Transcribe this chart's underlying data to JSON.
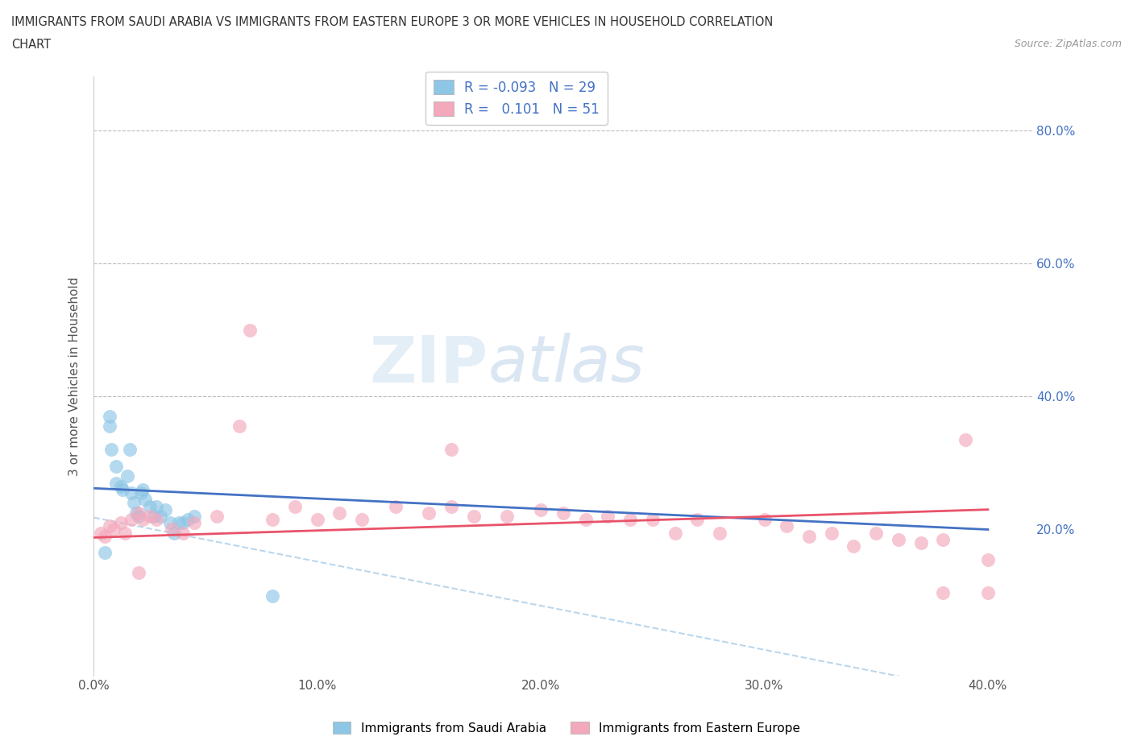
{
  "title_line1": "IMMIGRANTS FROM SAUDI ARABIA VS IMMIGRANTS FROM EASTERN EUROPE 3 OR MORE VEHICLES IN HOUSEHOLD CORRELATION",
  "title_line2": "CHART",
  "source": "Source: ZipAtlas.com",
  "ylabel": "3 or more Vehicles in Household",
  "xlim": [
    0.0,
    0.42
  ],
  "ylim": [
    -0.02,
    0.88
  ],
  "xticks": [
    0.0,
    0.1,
    0.2,
    0.3,
    0.4
  ],
  "yticks": [
    0.0,
    0.2,
    0.4,
    0.6,
    0.8
  ],
  "xtick_labels": [
    "0.0%",
    "10.0%",
    "20.0%",
    "30.0%",
    "40.0%"
  ],
  "ytick_labels_right": [
    "",
    "20.0%",
    "40.0%",
    "60.0%",
    "80.0%"
  ],
  "legend_label1": "Immigrants from Saudi Arabia",
  "legend_label2": "Immigrants from Eastern Europe",
  "R1": -0.093,
  "N1": 29,
  "R2": 0.101,
  "N2": 51,
  "color1": "#8ec6e6",
  "color2": "#f4a8bc",
  "color1_line": "#4472c4",
  "color2_line": "#e8536a",
  "color1_dash": "#aacde8",
  "watermark_zip": "ZIP",
  "watermark_atlas": "atlas",
  "saudi_x": [
    0.005,
    0.007,
    0.007,
    0.008,
    0.01,
    0.01,
    0.012,
    0.013,
    0.015,
    0.016,
    0.017,
    0.018,
    0.019,
    0.02,
    0.021,
    0.022,
    0.023,
    0.025,
    0.027,
    0.028,
    0.03,
    0.032,
    0.034,
    0.036,
    0.038,
    0.04,
    0.042,
    0.045,
    0.08
  ],
  "saudi_y": [
    0.165,
    0.37,
    0.355,
    0.32,
    0.295,
    0.27,
    0.265,
    0.26,
    0.28,
    0.32,
    0.255,
    0.24,
    0.225,
    0.22,
    0.255,
    0.26,
    0.245,
    0.235,
    0.22,
    0.235,
    0.22,
    0.23,
    0.21,
    0.195,
    0.21,
    0.21,
    0.215,
    0.22,
    0.1
  ],
  "eastern_x": [
    0.003,
    0.005,
    0.007,
    0.009,
    0.012,
    0.014,
    0.017,
    0.02,
    0.022,
    0.025,
    0.028,
    0.035,
    0.04,
    0.045,
    0.055,
    0.065,
    0.08,
    0.09,
    0.1,
    0.11,
    0.12,
    0.135,
    0.15,
    0.16,
    0.17,
    0.185,
    0.2,
    0.21,
    0.22,
    0.23,
    0.24,
    0.25,
    0.26,
    0.27,
    0.28,
    0.3,
    0.31,
    0.32,
    0.33,
    0.35,
    0.36,
    0.37,
    0.38,
    0.39,
    0.4,
    0.02,
    0.07,
    0.16,
    0.34,
    0.38,
    0.4
  ],
  "eastern_y": [
    0.195,
    0.19,
    0.205,
    0.2,
    0.21,
    0.195,
    0.215,
    0.225,
    0.215,
    0.22,
    0.215,
    0.2,
    0.195,
    0.21,
    0.22,
    0.355,
    0.215,
    0.235,
    0.215,
    0.225,
    0.215,
    0.235,
    0.225,
    0.235,
    0.22,
    0.22,
    0.23,
    0.225,
    0.215,
    0.22,
    0.215,
    0.215,
    0.195,
    0.215,
    0.195,
    0.215,
    0.205,
    0.19,
    0.195,
    0.195,
    0.185,
    0.18,
    0.185,
    0.335,
    0.105,
    0.135,
    0.5,
    0.32,
    0.175,
    0.105,
    0.155
  ]
}
